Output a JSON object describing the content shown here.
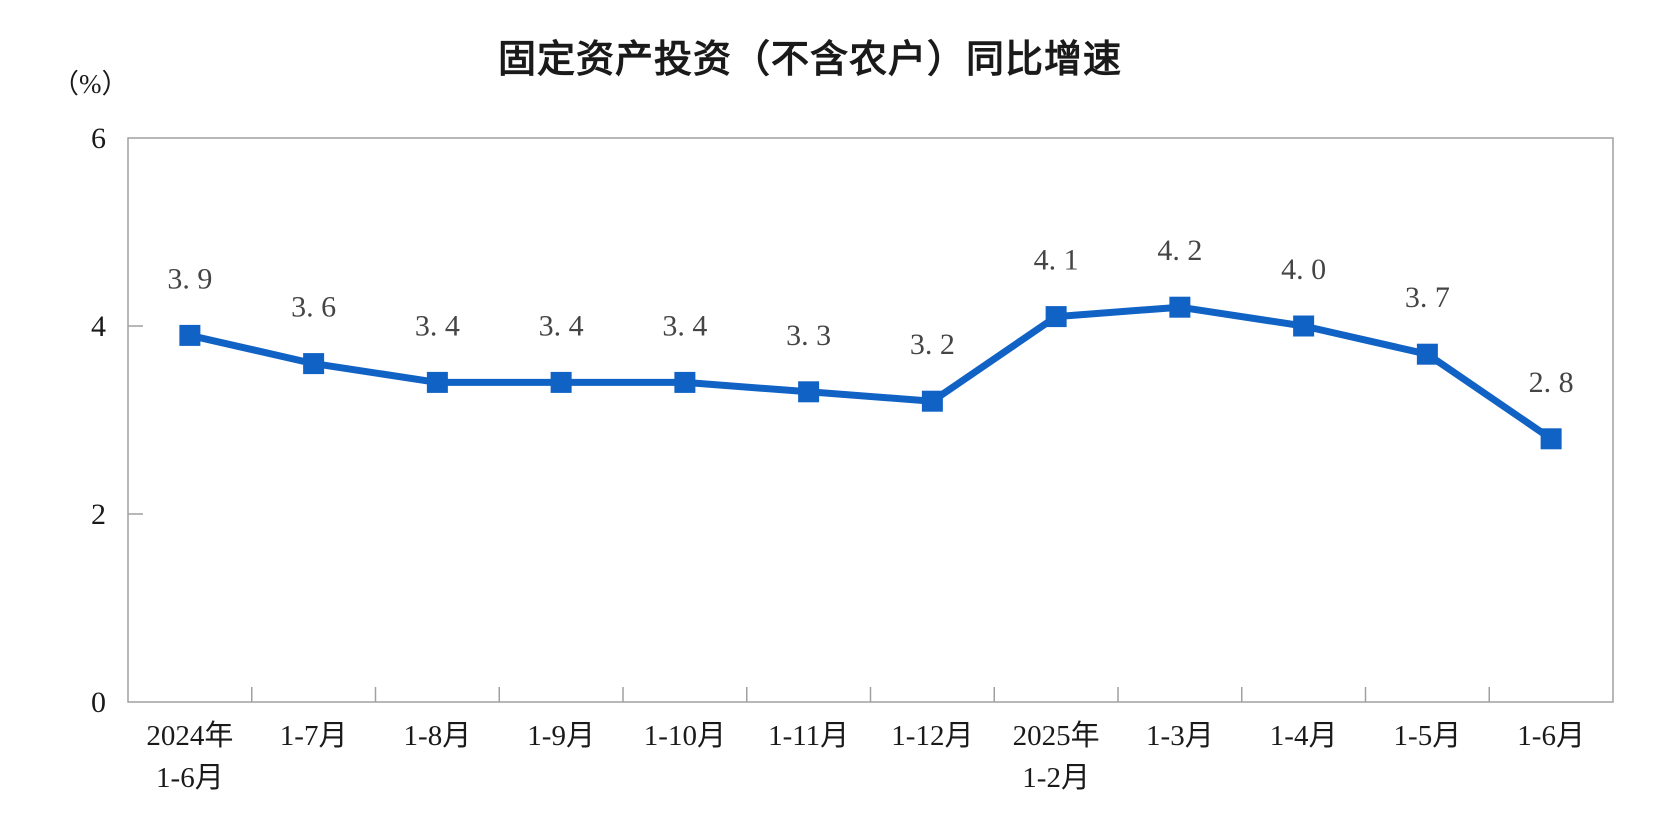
{
  "chart": {
    "title": "固定资产投资（不含农户）同比增速",
    "unit_label": "（%）",
    "colors": {
      "line": "#1162c5",
      "marker": "#1162c5",
      "axis": "#a0a0a0",
      "data_label": "#454545",
      "tick_label": "#1a1a1a",
      "title": "#1a1a1a"
    }
  },
  "chart_data": {
    "type": "line",
    "title": "固定资产投资（不含农户）同比增速",
    "ylabel": "（%）",
    "categories": [
      "2024年\n1-6月",
      "1-7月",
      "1-8月",
      "1-9月",
      "1-10月",
      "1-11月",
      "1-12月",
      "2025年\n1-2月",
      "1-3月",
      "1-4月",
      "1-5月",
      "1-6月"
    ],
    "values": [
      3.9,
      3.6,
      3.4,
      3.4,
      3.4,
      3.3,
      3.2,
      4.1,
      4.2,
      4.0,
      3.7,
      2.8
    ],
    "ylim": [
      0,
      6
    ],
    "yticks": [
      0,
      2,
      4,
      6
    ],
    "grid": false,
    "legend": "none",
    "marker": "square",
    "data_labels": true
  }
}
